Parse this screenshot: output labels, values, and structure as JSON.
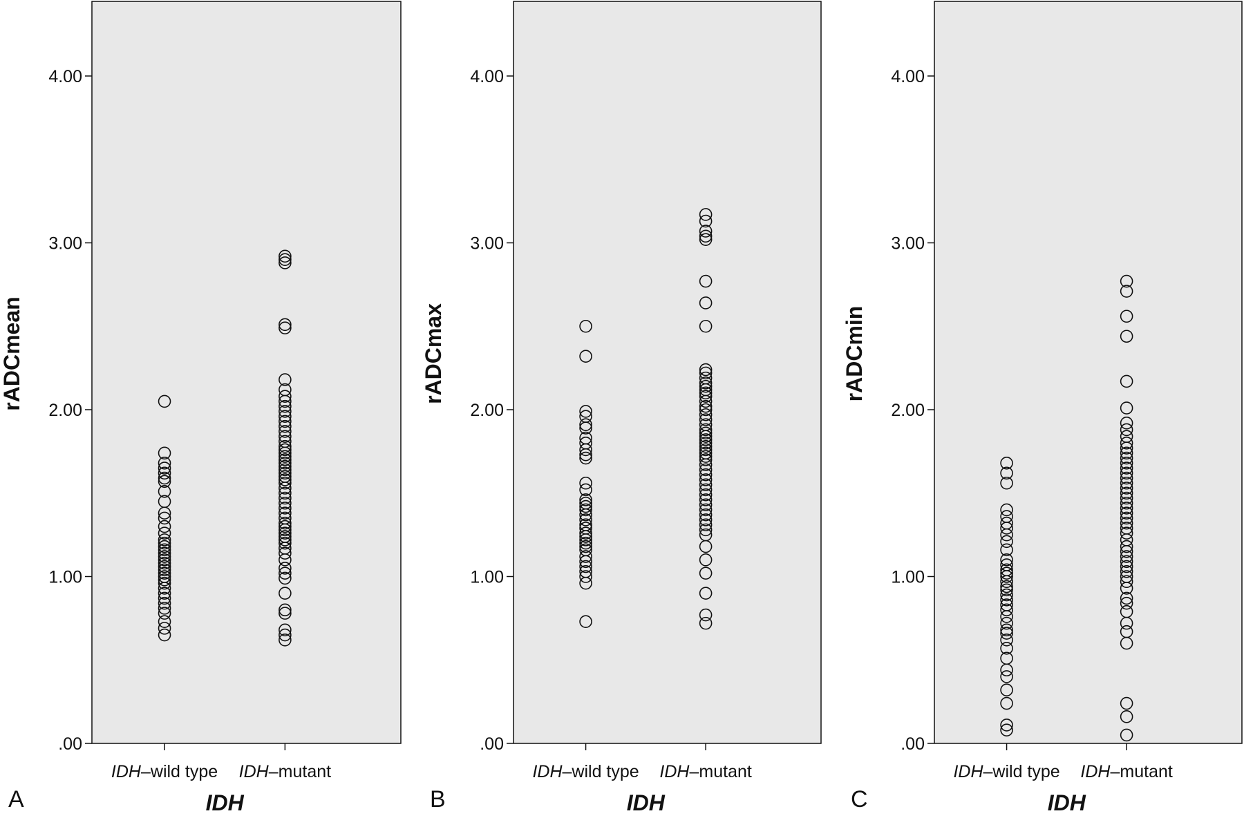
{
  "chart_data": [
    {
      "type": "scatter",
      "panel_label": "A",
      "ylabel": "rADCmean",
      "xlabel": "IDH",
      "ylim": [
        0,
        4.4
      ],
      "yticks": [
        0,
        1,
        2,
        3,
        4
      ],
      "ytick_labels": [
        ".00",
        "1.00",
        "2.00",
        "3.00",
        "4.00"
      ],
      "categories": [
        {
          "italic_part": "IDH",
          "rest": "–wild type"
        },
        {
          "italic_part": "IDH",
          "rest": "–mutant"
        }
      ],
      "series": [
        {
          "values": [
            2.05,
            1.74,
            1.68,
            1.65,
            1.62,
            1.59,
            1.57,
            1.51,
            1.45,
            1.38,
            1.35,
            1.3,
            1.26,
            1.22,
            1.2,
            1.18,
            1.16,
            1.14,
            1.12,
            1.1,
            1.08,
            1.06,
            1.04,
            1.02,
            1.0,
            0.98,
            0.96,
            0.93,
            0.9,
            0.87,
            0.84,
            0.81,
            0.78,
            0.73,
            0.69,
            0.65
          ]
        },
        {
          "values": [
            2.92,
            2.9,
            2.88,
            2.51,
            2.49,
            2.18,
            2.12,
            2.08,
            2.05,
            2.02,
            1.99,
            1.96,
            1.93,
            1.9,
            1.87,
            1.84,
            1.81,
            1.78,
            1.76,
            1.74,
            1.72,
            1.7,
            1.68,
            1.66,
            1.64,
            1.62,
            1.6,
            1.58,
            1.56,
            1.53,
            1.5,
            1.47,
            1.44,
            1.41,
            1.38,
            1.35,
            1.32,
            1.3,
            1.28,
            1.26,
            1.24,
            1.22,
            1.2,
            1.17,
            1.14,
            1.1,
            1.05,
            1.02,
            0.99,
            0.9,
            0.8,
            0.78,
            0.68,
            0.65,
            0.62
          ]
        }
      ]
    },
    {
      "type": "scatter",
      "panel_label": "B",
      "ylabel": "rADCmax",
      "xlabel": "IDH",
      "ylim": [
        0,
        4.4
      ],
      "yticks": [
        0,
        1,
        2,
        3,
        4
      ],
      "ytick_labels": [
        ".00",
        "1.00",
        "2.00",
        "3.00",
        "4.00"
      ],
      "categories": [
        {
          "italic_part": "IDH",
          "rest": "–wild type"
        },
        {
          "italic_part": "IDH",
          "rest": "–mutant"
        }
      ],
      "series": [
        {
          "values": [
            2.5,
            2.32,
            1.99,
            1.96,
            1.91,
            1.89,
            1.83,
            1.8,
            1.76,
            1.73,
            1.71,
            1.56,
            1.52,
            1.46,
            1.44,
            1.42,
            1.4,
            1.37,
            1.34,
            1.31,
            1.29,
            1.26,
            1.24,
            1.22,
            1.2,
            1.18,
            1.16,
            1.12,
            1.09,
            1.06,
            1.03,
            1.0,
            0.96,
            0.73
          ]
        },
        {
          "values": [
            3.17,
            3.13,
            3.07,
            3.04,
            3.02,
            2.77,
            2.64,
            2.5,
            2.24,
            2.22,
            2.19,
            2.16,
            2.14,
            2.12,
            2.1,
            2.08,
            2.05,
            2.02,
            2.0,
            1.97,
            1.94,
            1.91,
            1.88,
            1.86,
            1.84,
            1.82,
            1.8,
            1.78,
            1.76,
            1.74,
            1.72,
            1.7,
            1.67,
            1.64,
            1.61,
            1.58,
            1.55,
            1.52,
            1.49,
            1.46,
            1.43,
            1.4,
            1.37,
            1.34,
            1.31,
            1.28,
            1.25,
            1.18,
            1.1,
            1.02,
            0.9,
            0.77,
            0.72
          ]
        }
      ]
    },
    {
      "type": "scatter",
      "panel_label": "C",
      "ylabel": "rADCmin",
      "xlabel": "IDH",
      "ylim": [
        0,
        4.4
      ],
      "yticks": [
        0,
        1,
        2,
        3,
        4
      ],
      "ytick_labels": [
        ".00",
        "1.00",
        "2.00",
        "3.00",
        "4.00"
      ],
      "categories": [
        {
          "italic_part": "IDH",
          "rest": "–wild type"
        },
        {
          "italic_part": "IDH",
          "rest": "–mutant"
        }
      ],
      "series": [
        {
          "values": [
            1.68,
            1.62,
            1.56,
            1.4,
            1.36,
            1.32,
            1.29,
            1.25,
            1.21,
            1.16,
            1.1,
            1.07,
            1.04,
            1.02,
            1.0,
            0.97,
            0.94,
            0.92,
            0.89,
            0.86,
            0.83,
            0.8,
            0.76,
            0.72,
            0.68,
            0.66,
            0.62,
            0.57,
            0.51,
            0.44,
            0.4,
            0.32,
            0.24,
            0.11,
            0.08
          ]
        },
        {
          "values": [
            2.77,
            2.71,
            2.56,
            2.44,
            2.17,
            2.01,
            1.92,
            1.88,
            1.84,
            1.8,
            1.77,
            1.74,
            1.71,
            1.68,
            1.65,
            1.62,
            1.59,
            1.56,
            1.53,
            1.5,
            1.47,
            1.44,
            1.41,
            1.38,
            1.35,
            1.32,
            1.29,
            1.26,
            1.22,
            1.18,
            1.15,
            1.12,
            1.09,
            1.06,
            1.03,
            1.0,
            0.97,
            0.93,
            0.87,
            0.84,
            0.79,
            0.72,
            0.67,
            0.6,
            0.24,
            0.16,
            0.05
          ]
        }
      ]
    }
  ],
  "colors": {
    "plot_background": "#e8e8e8",
    "marker_stroke": "#111111",
    "axis": "#111111"
  }
}
